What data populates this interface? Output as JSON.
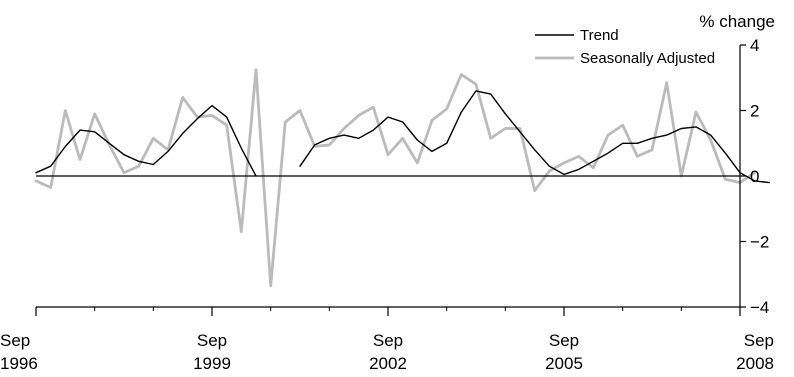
{
  "chart_data": {
    "type": "line",
    "title": "",
    "xlabel": "",
    "ylabel": "% change",
    "xlim": [
      1996.67,
      2008.67
    ],
    "ylim": [
      -4,
      4
    ],
    "y_ticks": [
      {
        "value": 4,
        "label": "4"
      },
      {
        "value": 2,
        "label": "2"
      },
      {
        "value": 0,
        "label": "0"
      },
      {
        "value": -2,
        "label": "−2"
      },
      {
        "value": -4,
        "label": "−4"
      }
    ],
    "x_ticks": [
      {
        "value": 1996.67,
        "line1": "Sep",
        "line2": "1996"
      },
      {
        "value": 1999.67,
        "line1": "Sep",
        "line2": "1999"
      },
      {
        "value": 2002.67,
        "line1": "Sep",
        "line2": "2002"
      },
      {
        "value": 2005.67,
        "line1": "Sep",
        "line2": "2005"
      },
      {
        "value": 2008.67,
        "line1": "Sep",
        "line2": "2008"
      }
    ],
    "x_minor_ticks": [
      1997.67,
      1998.67,
      2000.67,
      2001.67,
      2003.67,
      2004.67,
      2006.67,
      2007.67
    ],
    "zero_line": true,
    "grid": false,
    "legend_position": "top-right",
    "series": [
      {
        "name": "Trend",
        "color": "#000000",
        "segments": [
          [
            [
              1996.67,
              0.1
            ],
            [
              1996.92,
              0.3
            ],
            [
              1997.17,
              0.9
            ],
            [
              1997.42,
              1.4
            ],
            [
              1997.67,
              1.35
            ],
            [
              1997.92,
              1.0
            ],
            [
              1998.17,
              0.65
            ],
            [
              1998.42,
              0.45
            ],
            [
              1998.67,
              0.35
            ],
            [
              1998.92,
              0.75
            ],
            [
              1999.17,
              1.3
            ],
            [
              1999.42,
              1.75
            ],
            [
              1999.67,
              2.15
            ],
            [
              1999.92,
              1.8
            ],
            [
              2000.17,
              0.85
            ],
            [
              2000.42,
              0.0
            ]
          ],
          [
            [
              2001.17,
              0.3
            ],
            [
              2001.42,
              0.95
            ],
            [
              2001.67,
              1.15
            ],
            [
              2001.92,
              1.25
            ],
            [
              2002.17,
              1.15
            ],
            [
              2002.42,
              1.4
            ],
            [
              2002.67,
              1.8
            ],
            [
              2002.92,
              1.65
            ],
            [
              2003.17,
              1.1
            ],
            [
              2003.42,
              0.75
            ],
            [
              2003.67,
              1.0
            ],
            [
              2003.92,
              1.95
            ],
            [
              2004.17,
              2.6
            ],
            [
              2004.42,
              2.5
            ],
            [
              2004.67,
              1.9
            ],
            [
              2004.92,
              1.35
            ],
            [
              2005.17,
              0.8
            ],
            [
              2005.42,
              0.3
            ],
            [
              2005.67,
              0.05
            ],
            [
              2005.92,
              0.2
            ],
            [
              2006.17,
              0.45
            ],
            [
              2006.42,
              0.7
            ],
            [
              2006.67,
              1.0
            ],
            [
              2006.92,
              1.0
            ],
            [
              2007.17,
              1.15
            ],
            [
              2007.42,
              1.25
            ],
            [
              2007.67,
              1.45
            ],
            [
              2007.92,
              1.5
            ],
            [
              2008.17,
              1.25
            ],
            [
              2008.42,
              0.7
            ],
            [
              2008.67,
              0.1
            ],
            [
              2008.92,
              -0.15
            ],
            [
              2009.17,
              -0.2
            ]
          ]
        ]
      },
      {
        "name": "Seasonally Adjusted",
        "color": "#bbbbbb",
        "segments": [
          [
            [
              1996.67,
              -0.15
            ],
            [
              1996.92,
              -0.35
            ],
            [
              1997.17,
              2.0
            ],
            [
              1997.42,
              0.5
            ],
            [
              1997.67,
              1.9
            ],
            [
              1997.92,
              0.95
            ],
            [
              1998.17,
              0.1
            ],
            [
              1998.42,
              0.3
            ],
            [
              1998.67,
              1.15
            ],
            [
              1998.92,
              0.8
            ],
            [
              1999.17,
              2.4
            ],
            [
              1999.42,
              1.8
            ],
            [
              1999.67,
              1.85
            ],
            [
              1999.92,
              1.55
            ],
            [
              2000.17,
              -1.7
            ],
            [
              2000.42,
              3.25
            ],
            [
              2000.67,
              -3.35
            ],
            [
              2000.92,
              1.65
            ],
            [
              2001.17,
              2.0
            ],
            [
              2001.42,
              0.9
            ],
            [
              2001.67,
              0.95
            ],
            [
              2001.92,
              1.45
            ],
            [
              2002.17,
              1.85
            ],
            [
              2002.42,
              2.1
            ],
            [
              2002.67,
              0.65
            ],
            [
              2002.92,
              1.15
            ],
            [
              2003.17,
              0.4
            ],
            [
              2003.42,
              1.7
            ],
            [
              2003.67,
              2.05
            ],
            [
              2003.92,
              3.1
            ],
            [
              2004.17,
              2.8
            ],
            [
              2004.42,
              1.15
            ],
            [
              2004.67,
              1.45
            ],
            [
              2004.92,
              1.45
            ],
            [
              2005.17,
              -0.45
            ],
            [
              2005.42,
              0.15
            ],
            [
              2005.67,
              0.4
            ],
            [
              2005.92,
              0.6
            ],
            [
              2006.17,
              0.25
            ],
            [
              2006.42,
              1.25
            ],
            [
              2006.67,
              1.55
            ],
            [
              2006.92,
              0.6
            ],
            [
              2007.17,
              0.8
            ],
            [
              2007.42,
              2.85
            ],
            [
              2007.67,
              0.0
            ],
            [
              2007.92,
              1.95
            ],
            [
              2008.17,
              1.1
            ],
            [
              2008.42,
              -0.1
            ],
            [
              2008.67,
              -0.2
            ],
            [
              2008.92,
              0.1
            ]
          ]
        ]
      }
    ]
  }
}
